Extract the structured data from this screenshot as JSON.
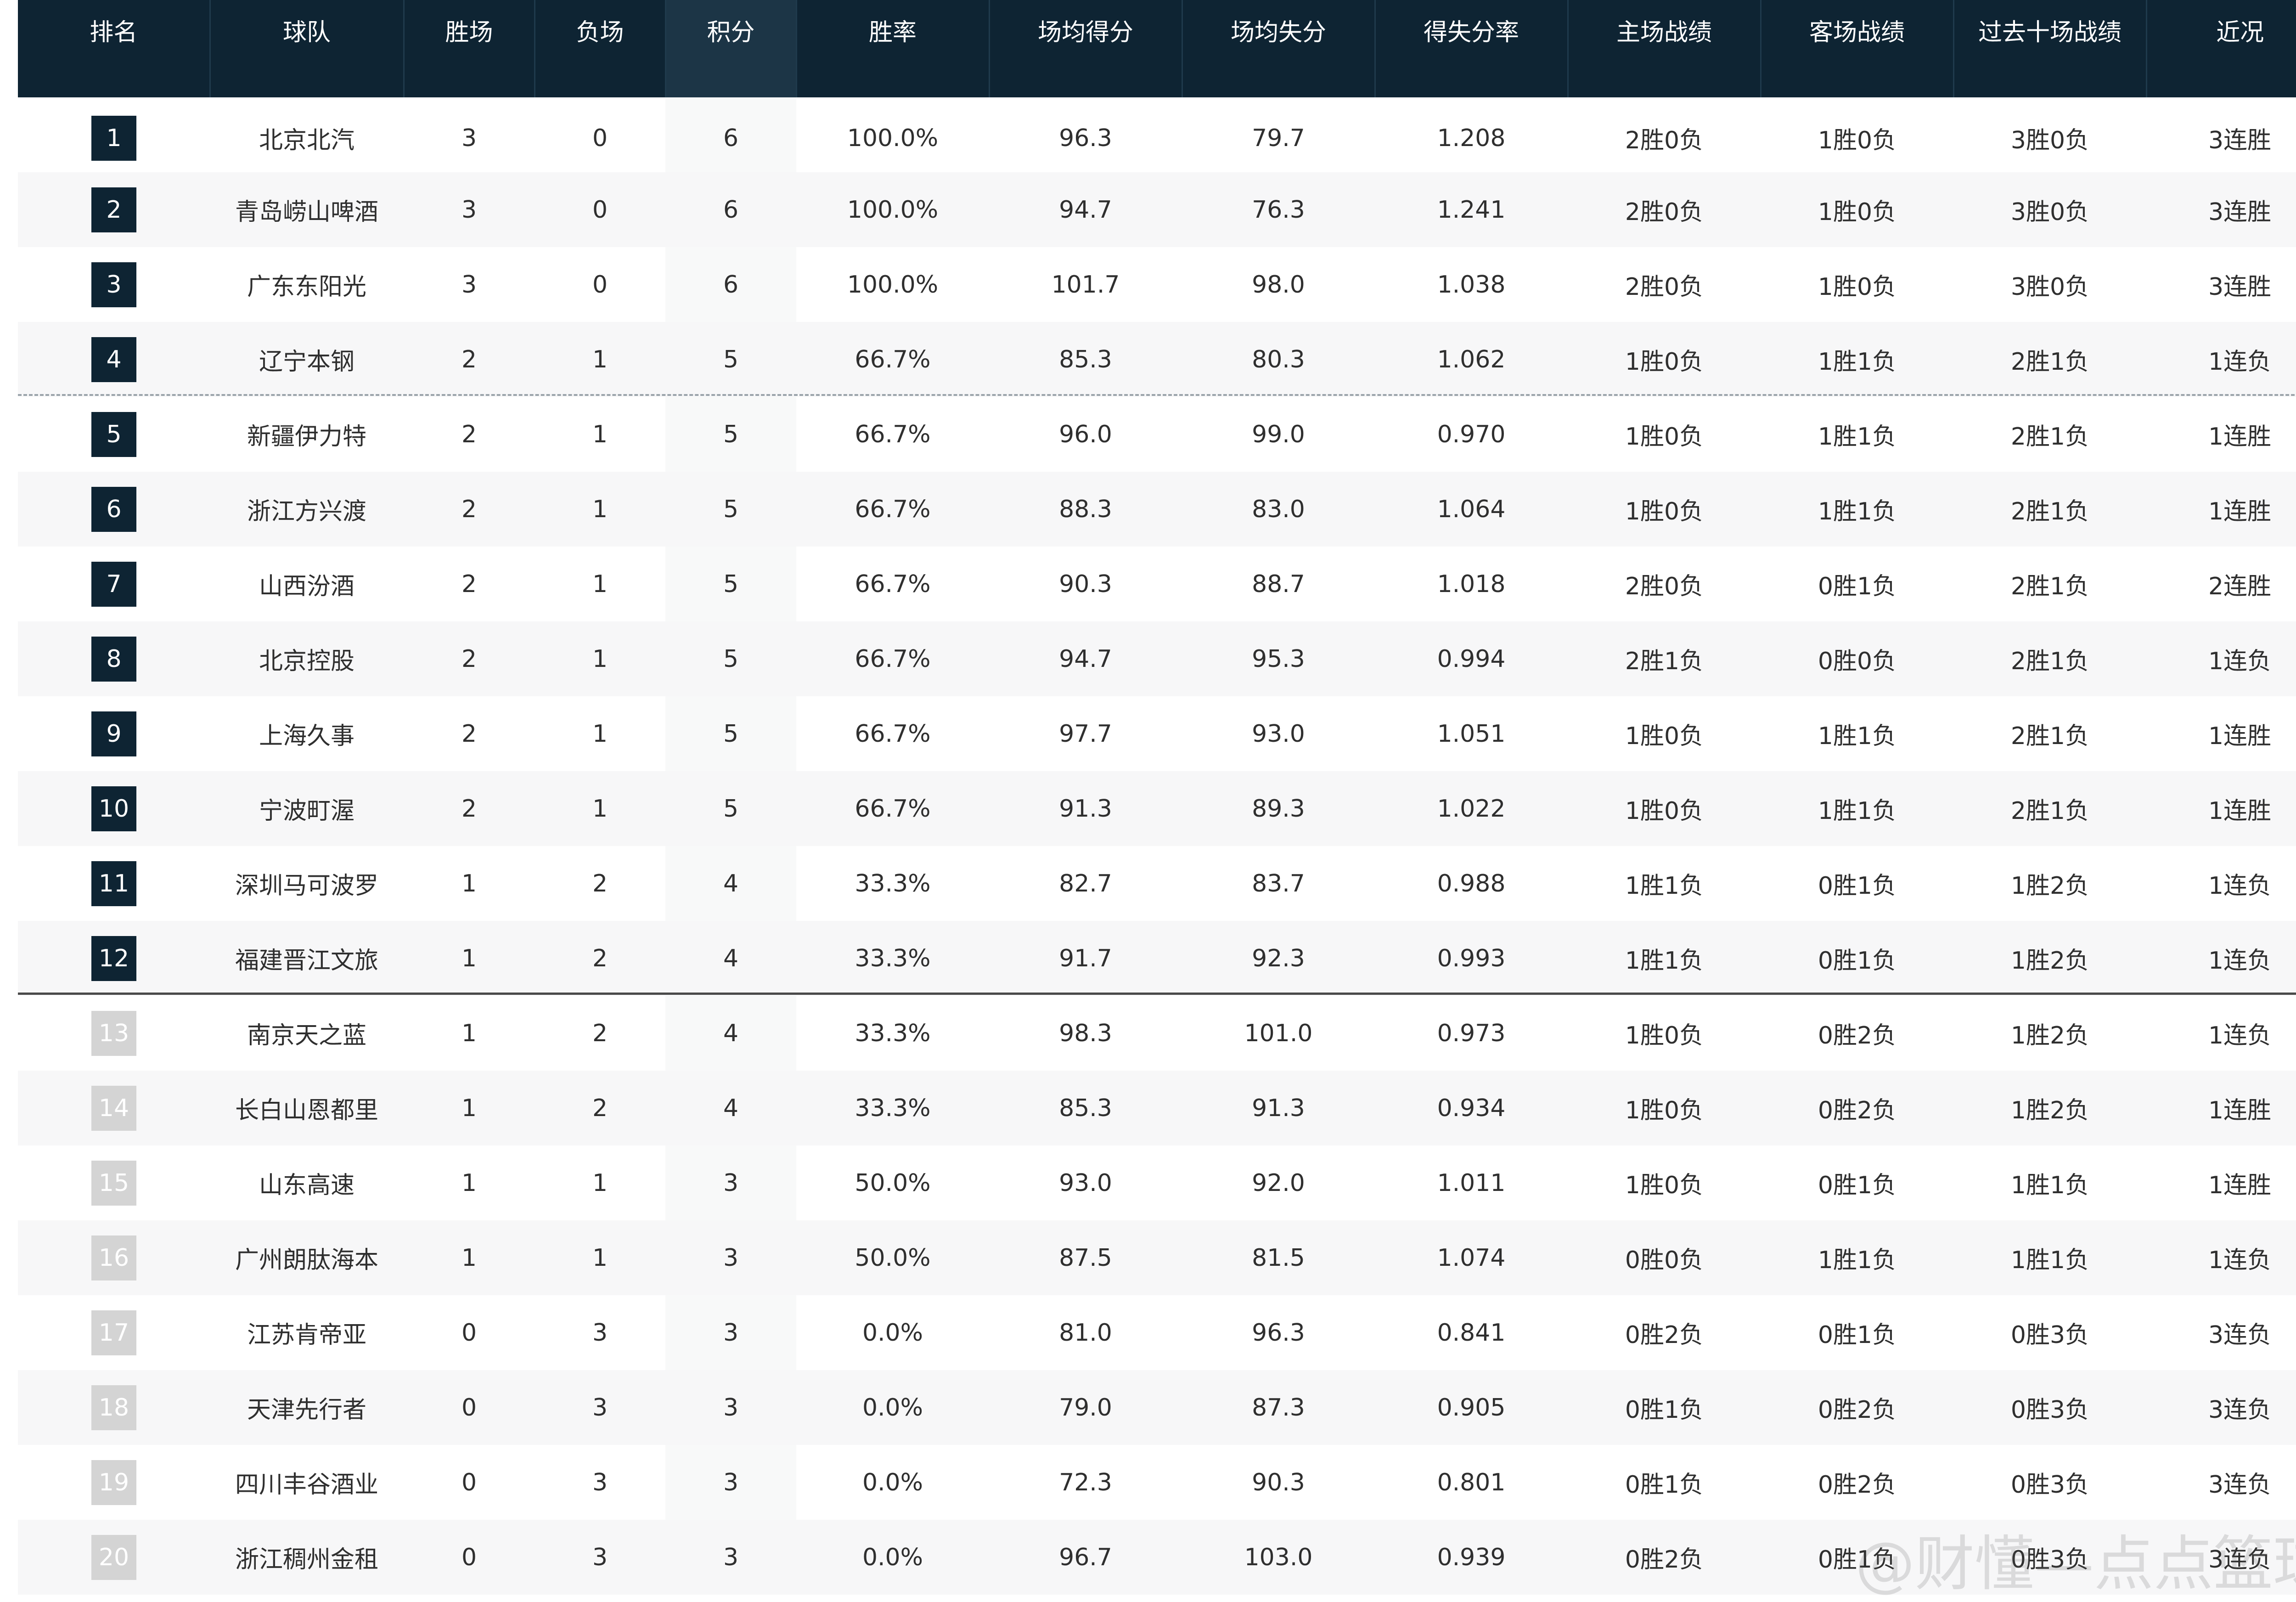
{
  "headers": [
    "排名",
    "球队",
    "胜场",
    "负场",
    "积分",
    "胜率",
    "场均得分",
    "场均失分",
    "得失分率",
    "主场战绩",
    "客场战绩",
    "过去十场战绩",
    "近况"
  ],
  "colors": {
    "header_bg": "#0e2433",
    "rank_badge_top": "#0e2433",
    "rank_badge_bottom": "#d4d4d4"
  },
  "rows": [
    {
      "rank": "1",
      "team": "北京北汽",
      "w": "3",
      "l": "0",
      "pts": "6",
      "pct": "100.0%",
      "ppg": "96.3",
      "oppg": "79.7",
      "ratio": "1.208",
      "home": "2胜0负",
      "away": "1胜0负",
      "last10": "3胜0负",
      "streak": "3连胜"
    },
    {
      "rank": "2",
      "team": "青岛崂山啤酒",
      "w": "3",
      "l": "0",
      "pts": "6",
      "pct": "100.0%",
      "ppg": "94.7",
      "oppg": "76.3",
      "ratio": "1.241",
      "home": "2胜0负",
      "away": "1胜0负",
      "last10": "3胜0负",
      "streak": "3连胜"
    },
    {
      "rank": "3",
      "team": "广东东阳光",
      "w": "3",
      "l": "0",
      "pts": "6",
      "pct": "100.0%",
      "ppg": "101.7",
      "oppg": "98.0",
      "ratio": "1.038",
      "home": "2胜0负",
      "away": "1胜0负",
      "last10": "3胜0负",
      "streak": "3连胜"
    },
    {
      "rank": "4",
      "team": "辽宁本钢",
      "w": "2",
      "l": "1",
      "pts": "5",
      "pct": "66.7%",
      "ppg": "85.3",
      "oppg": "80.3",
      "ratio": "1.062",
      "home": "1胜0负",
      "away": "1胜1负",
      "last10": "2胜1负",
      "streak": "1连负"
    },
    {
      "rank": "5",
      "team": "新疆伊力特",
      "w": "2",
      "l": "1",
      "pts": "5",
      "pct": "66.7%",
      "ppg": "96.0",
      "oppg": "99.0",
      "ratio": "0.970",
      "home": "1胜0负",
      "away": "1胜1负",
      "last10": "2胜1负",
      "streak": "1连胜"
    },
    {
      "rank": "6",
      "team": "浙江方兴渡",
      "w": "2",
      "l": "1",
      "pts": "5",
      "pct": "66.7%",
      "ppg": "88.3",
      "oppg": "83.0",
      "ratio": "1.064",
      "home": "1胜0负",
      "away": "1胜1负",
      "last10": "2胜1负",
      "streak": "1连胜"
    },
    {
      "rank": "7",
      "team": "山西汾酒",
      "w": "2",
      "l": "1",
      "pts": "5",
      "pct": "66.7%",
      "ppg": "90.3",
      "oppg": "88.7",
      "ratio": "1.018",
      "home": "2胜0负",
      "away": "0胜1负",
      "last10": "2胜1负",
      "streak": "2连胜"
    },
    {
      "rank": "8",
      "team": "北京控股",
      "w": "2",
      "l": "1",
      "pts": "5",
      "pct": "66.7%",
      "ppg": "94.7",
      "oppg": "95.3",
      "ratio": "0.994",
      "home": "2胜1负",
      "away": "0胜0负",
      "last10": "2胜1负",
      "streak": "1连负"
    },
    {
      "rank": "9",
      "team": "上海久事",
      "w": "2",
      "l": "1",
      "pts": "5",
      "pct": "66.7%",
      "ppg": "97.7",
      "oppg": "93.0",
      "ratio": "1.051",
      "home": "1胜0负",
      "away": "1胜1负",
      "last10": "2胜1负",
      "streak": "1连胜"
    },
    {
      "rank": "10",
      "team": "宁波町渥",
      "w": "2",
      "l": "1",
      "pts": "5",
      "pct": "66.7%",
      "ppg": "91.3",
      "oppg": "89.3",
      "ratio": "1.022",
      "home": "1胜0负",
      "away": "1胜1负",
      "last10": "2胜1负",
      "streak": "1连胜"
    },
    {
      "rank": "11",
      "team": "深圳马可波罗",
      "w": "1",
      "l": "2",
      "pts": "4",
      "pct": "33.3%",
      "ppg": "82.7",
      "oppg": "83.7",
      "ratio": "0.988",
      "home": "1胜1负",
      "away": "0胜1负",
      "last10": "1胜2负",
      "streak": "1连负"
    },
    {
      "rank": "12",
      "team": "福建晋江文旅",
      "w": "1",
      "l": "2",
      "pts": "4",
      "pct": "33.3%",
      "ppg": "91.7",
      "oppg": "92.3",
      "ratio": "0.993",
      "home": "1胜1负",
      "away": "0胜1负",
      "last10": "1胜2负",
      "streak": "1连负"
    },
    {
      "rank": "13",
      "team": "南京天之蓝",
      "w": "1",
      "l": "2",
      "pts": "4",
      "pct": "33.3%",
      "ppg": "98.3",
      "oppg": "101.0",
      "ratio": "0.973",
      "home": "1胜0负",
      "away": "0胜2负",
      "last10": "1胜2负",
      "streak": "1连负"
    },
    {
      "rank": "14",
      "team": "长白山恩都里",
      "w": "1",
      "l": "2",
      "pts": "4",
      "pct": "33.3%",
      "ppg": "85.3",
      "oppg": "91.3",
      "ratio": "0.934",
      "home": "1胜0负",
      "away": "0胜2负",
      "last10": "1胜2负",
      "streak": "1连胜"
    },
    {
      "rank": "15",
      "team": "山东高速",
      "w": "1",
      "l": "1",
      "pts": "3",
      "pct": "50.0%",
      "ppg": "93.0",
      "oppg": "92.0",
      "ratio": "1.011",
      "home": "1胜0负",
      "away": "0胜1负",
      "last10": "1胜1负",
      "streak": "1连胜"
    },
    {
      "rank": "16",
      "team": "广州朗肽海本",
      "w": "1",
      "l": "1",
      "pts": "3",
      "pct": "50.0%",
      "ppg": "87.5",
      "oppg": "81.5",
      "ratio": "1.074",
      "home": "0胜0负",
      "away": "1胜1负",
      "last10": "1胜1负",
      "streak": "1连负"
    },
    {
      "rank": "17",
      "team": "江苏肯帝亚",
      "w": "0",
      "l": "3",
      "pts": "3",
      "pct": "0.0%",
      "ppg": "81.0",
      "oppg": "96.3",
      "ratio": "0.841",
      "home": "0胜2负",
      "away": "0胜1负",
      "last10": "0胜3负",
      "streak": "3连负"
    },
    {
      "rank": "18",
      "team": "天津先行者",
      "w": "0",
      "l": "3",
      "pts": "3",
      "pct": "0.0%",
      "ppg": "79.0",
      "oppg": "87.3",
      "ratio": "0.905",
      "home": "0胜1负",
      "away": "0胜2负",
      "last10": "0胜3负",
      "streak": "3连负"
    },
    {
      "rank": "19",
      "team": "四川丰谷酒业",
      "w": "0",
      "l": "3",
      "pts": "3",
      "pct": "0.0%",
      "ppg": "72.3",
      "oppg": "90.3",
      "ratio": "0.801",
      "home": "0胜1负",
      "away": "0胜2负",
      "last10": "0胜3负",
      "streak": "3连负"
    },
    {
      "rank": "20",
      "team": "浙江稠州金租",
      "w": "0",
      "l": "3",
      "pts": "3",
      "pct": "0.0%",
      "ppg": "96.7",
      "oppg": "103.0",
      "ratio": "0.939",
      "home": "0胜2负",
      "away": "0胜1负",
      "last10": "0胜3负",
      "streak": "3连负"
    }
  ],
  "watermark": "@财懂—点点篮球"
}
